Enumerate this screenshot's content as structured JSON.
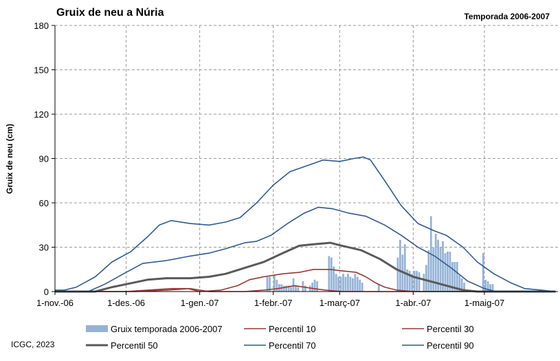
{
  "chart_data": {
    "type": "bar",
    "title": "Gruix de neu a Núria",
    "subtitle": "Temporada 2006-2007",
    "ylabel": "Gruix de neu (cm)",
    "xlabel": "",
    "ylim": [
      0,
      180
    ],
    "yticks": [
      "0",
      "30",
      "60",
      "90",
      "120",
      "150",
      "180"
    ],
    "x_range": [
      "2006-11-01",
      "2007-05-31"
    ],
    "x_ticks": [
      {
        "date": "2006-11-01",
        "label": "1-nov.-06"
      },
      {
        "date": "2006-12-01",
        "label": "1-des.-06"
      },
      {
        "date": "2007-01-01",
        "label": "1-gen.-07"
      },
      {
        "date": "2007-02-01",
        "label": "1-febr.-07"
      },
      {
        "date": "2007-03-01",
        "label": "1-març-07"
      },
      {
        "date": "2007-04-01",
        "label": "1-abr.-07"
      },
      {
        "date": "2007-05-01",
        "label": "1-maig-07"
      }
    ],
    "grid": true,
    "legend_placement": "bottom",
    "credit": "ICGC, 2023",
    "bars": {
      "name": "Gruix temporada 2006-2007",
      "color": "#95b3d7",
      "points": [
        [
          "2007-01-29",
          10
        ],
        [
          "2007-01-30",
          10
        ],
        [
          "2007-02-01",
          11
        ],
        [
          "2007-02-02",
          8
        ],
        [
          "2007-02-03",
          5
        ],
        [
          "2007-02-04",
          5
        ],
        [
          "2007-02-05",
          4
        ],
        [
          "2007-02-06",
          4
        ],
        [
          "2007-02-07",
          4
        ],
        [
          "2007-02-08",
          3
        ],
        [
          "2007-02-09",
          9
        ],
        [
          "2007-02-10",
          4
        ],
        [
          "2007-02-11",
          3
        ],
        [
          "2007-02-13",
          7
        ],
        [
          "2007-02-14",
          4
        ],
        [
          "2007-02-16",
          4
        ],
        [
          "2007-02-17",
          6
        ],
        [
          "2007-02-18",
          8
        ],
        [
          "2007-02-19",
          7
        ],
        [
          "2007-02-24",
          24
        ],
        [
          "2007-02-25",
          23
        ],
        [
          "2007-02-26",
          17
        ],
        [
          "2007-02-27",
          12
        ],
        [
          "2007-02-28",
          10
        ],
        [
          "2007-03-01",
          10
        ],
        [
          "2007-03-02",
          12
        ],
        [
          "2007-03-03",
          10
        ],
        [
          "2007-03-04",
          12
        ],
        [
          "2007-03-05",
          10
        ],
        [
          "2007-03-06",
          9
        ],
        [
          "2007-03-07",
          12
        ],
        [
          "2007-03-08",
          10
        ],
        [
          "2007-03-09",
          8
        ],
        [
          "2007-03-10",
          6
        ],
        [
          "2007-03-17",
          5
        ],
        [
          "2007-03-25",
          23
        ],
        [
          "2007-03-26",
          35
        ],
        [
          "2007-03-27",
          25
        ],
        [
          "2007-03-28",
          32
        ],
        [
          "2007-03-29",
          15
        ],
        [
          "2007-03-30",
          14
        ],
        [
          "2007-03-31",
          12
        ],
        [
          "2007-04-01",
          14
        ],
        [
          "2007-04-02",
          14
        ],
        [
          "2007-04-03",
          13
        ],
        [
          "2007-04-05",
          12
        ],
        [
          "2007-04-06",
          18
        ],
        [
          "2007-04-07",
          28
        ],
        [
          "2007-04-08",
          51
        ],
        [
          "2007-04-09",
          30
        ],
        [
          "2007-04-10",
          39
        ],
        [
          "2007-04-11",
          35
        ],
        [
          "2007-04-12",
          30
        ],
        [
          "2007-04-13",
          34
        ],
        [
          "2007-04-14",
          26
        ],
        [
          "2007-04-15",
          27
        ],
        [
          "2007-04-16",
          27
        ],
        [
          "2007-04-17",
          20
        ],
        [
          "2007-04-18",
          20
        ],
        [
          "2007-04-19",
          20
        ],
        [
          "2007-04-20",
          11
        ],
        [
          "2007-04-21",
          9
        ],
        [
          "2007-04-22",
          6
        ],
        [
          "2007-04-30",
          26
        ],
        [
          "2007-05-01",
          8
        ],
        [
          "2007-05-02",
          7
        ],
        [
          "2007-05-03",
          5
        ],
        [
          "2007-05-04",
          5
        ]
      ]
    },
    "series": [
      {
        "name": "Percentil 10",
        "color": "#953735",
        "width": 1.6,
        "points": [
          [
            "2006-11-01",
            0
          ],
          [
            "2006-12-05",
            0
          ],
          [
            "2006-12-18",
            1
          ],
          [
            "2006-12-28",
            2
          ],
          [
            "2007-01-05",
            0
          ],
          [
            "2007-01-20",
            0
          ],
          [
            "2007-01-28",
            1
          ],
          [
            "2007-02-03",
            2
          ],
          [
            "2007-02-10",
            4
          ],
          [
            "2007-02-18",
            2
          ],
          [
            "2007-02-23",
            1
          ],
          [
            "2007-03-02",
            0
          ],
          [
            "2007-05-31",
            0
          ]
        ]
      },
      {
        "name": "Percentil 30",
        "color": "#953735",
        "width": 1.6,
        "points": [
          [
            "2006-11-01",
            0
          ],
          [
            "2006-12-01",
            0
          ],
          [
            "2006-12-10",
            1
          ],
          [
            "2006-12-20",
            2
          ],
          [
            "2006-12-27",
            2
          ],
          [
            "2007-01-01",
            0
          ],
          [
            "2007-01-10",
            1
          ],
          [
            "2007-01-17",
            4
          ],
          [
            "2007-01-22",
            8
          ],
          [
            "2007-01-28",
            10
          ],
          [
            "2007-02-05",
            12
          ],
          [
            "2007-02-12",
            13
          ],
          [
            "2007-02-18",
            15
          ],
          [
            "2007-02-25",
            15
          ],
          [
            "2007-03-02",
            14
          ],
          [
            "2007-03-08",
            13
          ],
          [
            "2007-03-12",
            10
          ],
          [
            "2007-03-16",
            6
          ],
          [
            "2007-03-20",
            3
          ],
          [
            "2007-03-25",
            1
          ],
          [
            "2007-04-01",
            0
          ],
          [
            "2007-05-31",
            0
          ]
        ]
      },
      {
        "name": "Percentil 50",
        "color": "#595959",
        "width": 3,
        "points": [
          [
            "2006-11-01",
            0
          ],
          [
            "2006-11-18",
            0
          ],
          [
            "2006-11-25",
            3
          ],
          [
            "2006-12-01",
            5
          ],
          [
            "2006-12-10",
            8
          ],
          [
            "2006-12-18",
            9
          ],
          [
            "2006-12-28",
            9
          ],
          [
            "2007-01-05",
            10
          ],
          [
            "2007-01-12",
            12
          ],
          [
            "2007-01-20",
            16
          ],
          [
            "2007-01-28",
            20
          ],
          [
            "2007-02-05",
            26
          ],
          [
            "2007-02-12",
            31
          ],
          [
            "2007-02-18",
            32
          ],
          [
            "2007-02-25",
            33
          ],
          [
            "2007-03-02",
            31
          ],
          [
            "2007-03-10",
            28
          ],
          [
            "2007-03-18",
            22
          ],
          [
            "2007-03-25",
            15
          ],
          [
            "2007-04-01",
            10
          ],
          [
            "2007-04-08",
            7
          ],
          [
            "2007-04-15",
            4
          ],
          [
            "2007-04-22",
            1
          ],
          [
            "2007-04-28",
            0
          ],
          [
            "2007-05-31",
            0
          ]
        ]
      },
      {
        "name": "Percentil 70",
        "color": "#2f5a8f",
        "width": 1.6,
        "points": [
          [
            "2006-11-01",
            0
          ],
          [
            "2006-11-15",
            0
          ],
          [
            "2006-11-22",
            5
          ],
          [
            "2006-12-01",
            13
          ],
          [
            "2006-12-08",
            19
          ],
          [
            "2006-12-18",
            21
          ],
          [
            "2006-12-28",
            24
          ],
          [
            "2007-01-05",
            26
          ],
          [
            "2007-01-12",
            29
          ],
          [
            "2007-01-20",
            33
          ],
          [
            "2007-01-25",
            34
          ],
          [
            "2007-01-31",
            38
          ],
          [
            "2007-02-07",
            46
          ],
          [
            "2007-02-14",
            53
          ],
          [
            "2007-02-20",
            57
          ],
          [
            "2007-02-26",
            56
          ],
          [
            "2007-03-05",
            53
          ],
          [
            "2007-03-12",
            51
          ],
          [
            "2007-03-20",
            45
          ],
          [
            "2007-03-27",
            38
          ],
          [
            "2007-04-03",
            30
          ],
          [
            "2007-04-10",
            24
          ],
          [
            "2007-04-17",
            16
          ],
          [
            "2007-04-24",
            7
          ],
          [
            "2007-05-01",
            2
          ],
          [
            "2007-05-06",
            0
          ],
          [
            "2007-05-31",
            0
          ]
        ]
      },
      {
        "name": "Percentil 90",
        "color": "#2f5a8f",
        "width": 1.6,
        "points": [
          [
            "2006-11-01",
            1
          ],
          [
            "2006-11-05",
            1
          ],
          [
            "2006-11-10",
            3
          ],
          [
            "2006-11-18",
            10
          ],
          [
            "2006-11-25",
            20
          ],
          [
            "2006-12-03",
            27
          ],
          [
            "2006-12-10",
            37
          ],
          [
            "2006-12-15",
            45
          ],
          [
            "2006-12-20",
            48
          ],
          [
            "2006-12-28",
            46
          ],
          [
            "2007-01-05",
            45
          ],
          [
            "2007-01-12",
            47
          ],
          [
            "2007-01-18",
            50
          ],
          [
            "2007-01-25",
            60
          ],
          [
            "2007-02-01",
            72
          ],
          [
            "2007-02-08",
            81
          ],
          [
            "2007-02-15",
            85
          ],
          [
            "2007-02-22",
            89
          ],
          [
            "2007-03-01",
            88
          ],
          [
            "2007-03-07",
            90
          ],
          [
            "2007-03-11",
            91
          ],
          [
            "2007-03-14",
            89
          ],
          [
            "2007-03-20",
            75
          ],
          [
            "2007-03-27",
            58
          ],
          [
            "2007-04-03",
            46
          ],
          [
            "2007-04-10",
            41
          ],
          [
            "2007-04-15",
            38
          ],
          [
            "2007-04-22",
            30
          ],
          [
            "2007-04-28",
            20
          ],
          [
            "2007-05-05",
            12
          ],
          [
            "2007-05-12",
            6
          ],
          [
            "2007-05-18",
            2
          ],
          [
            "2007-05-25",
            1
          ],
          [
            "2007-05-31",
            0
          ]
        ]
      }
    ]
  }
}
